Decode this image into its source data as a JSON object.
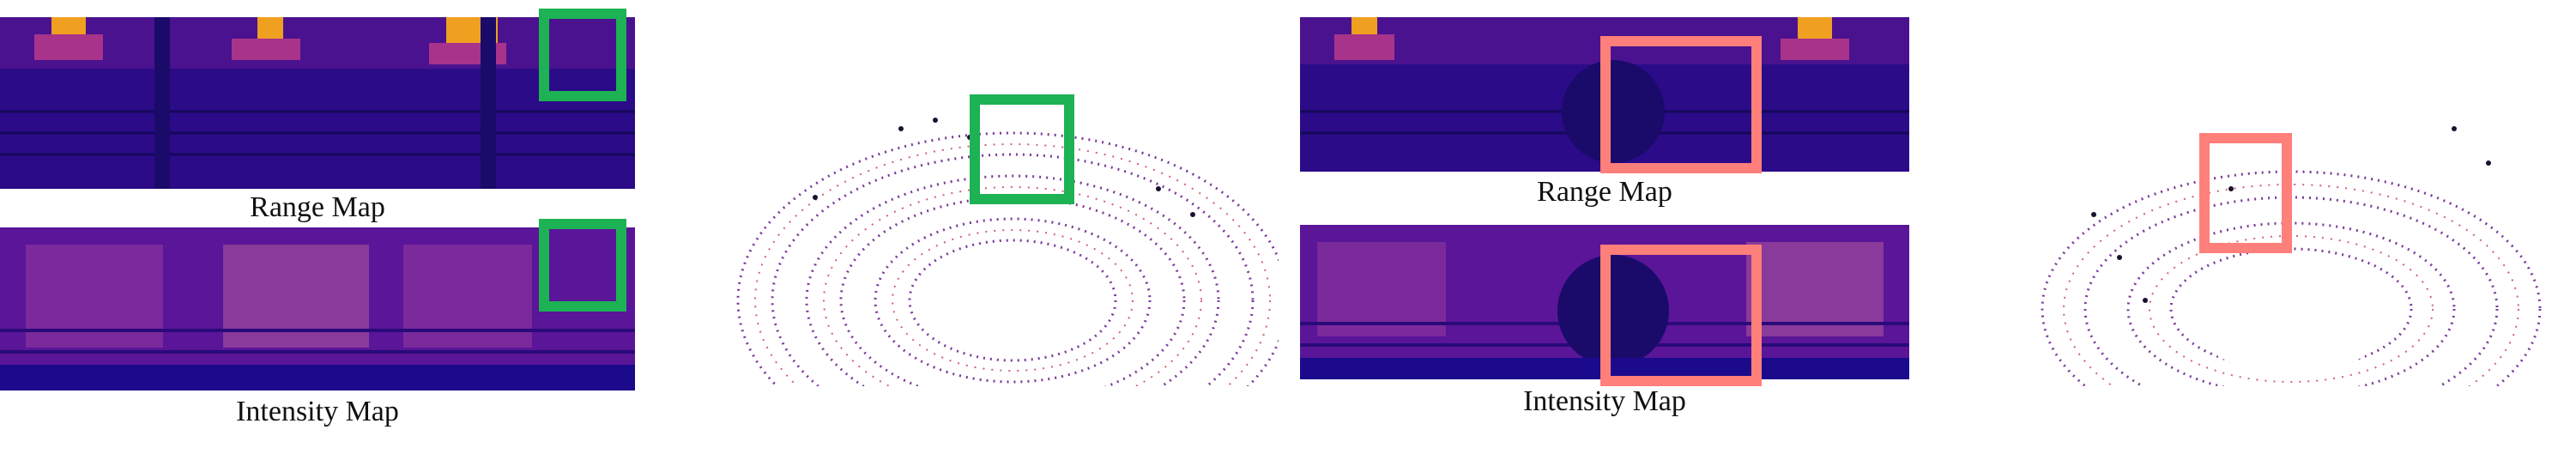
{
  "labels": {
    "range_map": "Range Map",
    "intensity_map": "Intensity Map"
  },
  "colors": {
    "map_dark": "#1b0a8c",
    "map_mid": "#6a1fa0",
    "map_hot": "#f0a020",
    "green_box": "#1db254",
    "pink_box": "#ff7f7a",
    "cloud_dark": "#1a1030",
    "cloud_purple": "#7a3a9a",
    "cloud_pink": "#d0607a"
  }
}
